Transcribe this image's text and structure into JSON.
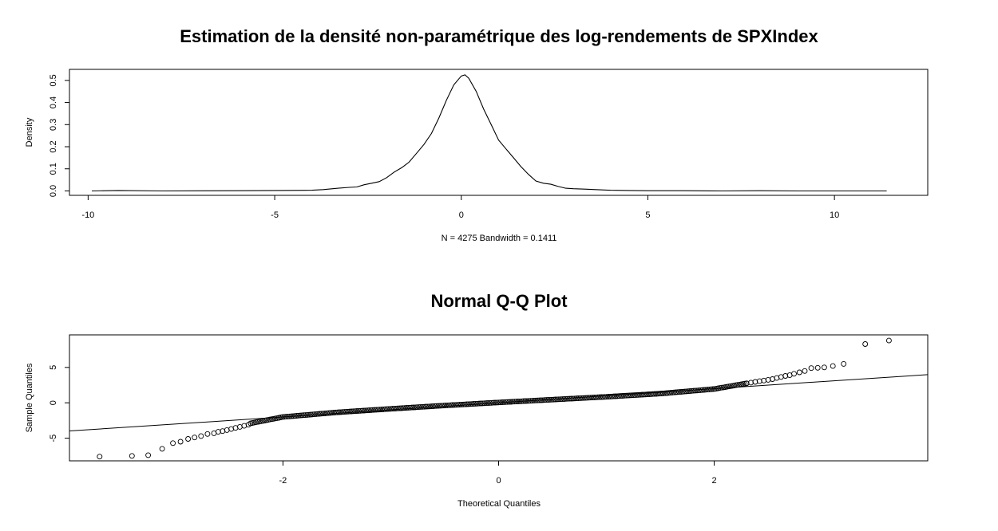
{
  "chart_data": [
    {
      "type": "line",
      "title": "Estimation de la densité non-paramétrique des log-rendements de SPXIndex",
      "xlabel": "N = 4275   Bandwidth = 0.1411",
      "ylabel": "Density",
      "xlim": [
        -10.5,
        12.5
      ],
      "ylim": [
        -0.02,
        0.55
      ],
      "xticks": [
        -10,
        -5,
        0,
        5,
        10
      ],
      "yticks": [
        0.0,
        0.1,
        0.2,
        0.3,
        0.4,
        0.5
      ],
      "xtick_labels": [
        "-10",
        "-5",
        "0",
        "5",
        "10"
      ],
      "ytick_labels": [
        "0.0",
        "0.1",
        "0.2",
        "0.3",
        "0.4",
        "0.5"
      ],
      "grid": false,
      "series": [
        {
          "x": [
            -9.9,
            -9.2,
            -8.0,
            -6.0,
            -5.0,
            -4.0,
            -3.7,
            -3.3,
            -3.0,
            -2.8,
            -2.6,
            -2.4,
            -2.2,
            -2.0,
            -1.8,
            -1.6,
            -1.4,
            -1.2,
            -1.0,
            -0.8,
            -0.6,
            -0.4,
            -0.2,
            0.0,
            0.1,
            0.2,
            0.4,
            0.6,
            0.8,
            1.0,
            1.2,
            1.4,
            1.6,
            1.8,
            2.0,
            2.2,
            2.4,
            2.6,
            2.8,
            3.0,
            3.3,
            3.6,
            4.0,
            4.5,
            5.0,
            6.0,
            7.0,
            8.0,
            9.0,
            10.0,
            11.4
          ],
          "y": [
            0.0,
            0.002,
            0.0,
            0.001,
            0.002,
            0.003,
            0.006,
            0.012,
            0.016,
            0.018,
            0.028,
            0.035,
            0.042,
            0.06,
            0.085,
            0.105,
            0.13,
            0.17,
            0.21,
            0.26,
            0.33,
            0.41,
            0.48,
            0.52,
            0.525,
            0.51,
            0.45,
            0.37,
            0.3,
            0.23,
            0.19,
            0.15,
            0.11,
            0.075,
            0.045,
            0.035,
            0.03,
            0.02,
            0.012,
            0.01,
            0.008,
            0.006,
            0.003,
            0.002,
            0.001,
            0.001,
            0.0,
            0.001,
            0.0,
            0.0,
            0.0
          ]
        }
      ]
    },
    {
      "type": "scatter",
      "title": "Normal Q-Q Plot",
      "xlabel": "Theoretical Quantiles",
      "ylabel": "Sample Quantiles",
      "xlim": [
        -3.98,
        3.98
      ],
      "ylim": [
        -8.2,
        9.6
      ],
      "xticks": [
        -2,
        0,
        2
      ],
      "yticks": [
        -5,
        0,
        5
      ],
      "xtick_labels": [
        "-2",
        "0",
        "2"
      ],
      "ytick_labels": [
        "-5",
        "0",
        "5"
      ],
      "grid": false,
      "reference_line": {
        "slope": 1.0,
        "intercept": 0.0
      },
      "series": [
        {
          "x": [
            -3.7,
            -3.4,
            -3.25,
            -3.12,
            -3.02,
            -2.95,
            -2.88,
            -2.82,
            -2.76,
            -2.7,
            -2.64,
            -2.6,
            -2.56,
            -2.52,
            -2.48,
            -2.44,
            -2.4,
            -2.36,
            -2.32,
            3.62,
            3.4,
            3.2,
            3.1,
            3.02,
            2.96,
            2.9,
            2.84,
            2.79,
            2.74,
            2.7,
            2.66,
            2.62,
            2.58,
            2.54,
            2.5,
            2.46,
            2.42,
            2.38,
            2.34,
            2.3
          ],
          "y": [
            -7.6,
            -7.5,
            -7.4,
            -6.5,
            -5.7,
            -5.5,
            -5.1,
            -4.9,
            -4.7,
            -4.4,
            -4.3,
            -4.1,
            -4.0,
            -3.85,
            -3.7,
            -3.55,
            -3.4,
            -3.25,
            -3.1,
            8.8,
            8.3,
            5.5,
            5.2,
            5.0,
            4.95,
            4.9,
            4.5,
            4.3,
            4.1,
            3.9,
            3.8,
            3.65,
            3.5,
            3.35,
            3.25,
            3.15,
            3.05,
            2.95,
            2.85,
            2.75
          ]
        }
      ],
      "body_quantiles": {
        "x": [
          -2.3,
          -2.0,
          -1.5,
          -1.0,
          -0.5,
          0.0,
          0.5,
          1.0,
          1.5,
          2.0,
          2.3
        ],
        "y": [
          -2.9,
          -2.0,
          -1.35,
          -0.85,
          -0.38,
          0.05,
          0.45,
          0.85,
          1.3,
          1.95,
          2.75
        ]
      }
    }
  ]
}
